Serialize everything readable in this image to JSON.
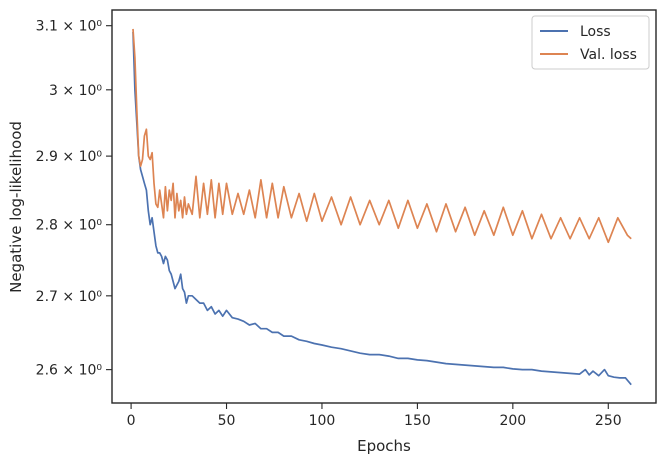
{
  "chart_data": {
    "type": "line",
    "title": "",
    "xlabel": "Epochs",
    "ylabel": "Negative log-likelihood",
    "yscale": "log",
    "xlim": [
      -10,
      275
    ],
    "ylim": [
      2.556,
      3.125
    ],
    "x_ticks": [
      0,
      50,
      100,
      150,
      200,
      250
    ],
    "y_ticks": [
      {
        "value": 2.6,
        "label": "2.6 × 10⁰"
      },
      {
        "value": 2.7,
        "label": "2.7 × 10⁰"
      },
      {
        "value": 2.8,
        "label": "2.8 × 10⁰"
      },
      {
        "value": 2.9,
        "label": "2.9 × 10⁰"
      },
      {
        "value": 3.0,
        "label": "3 × 10⁰"
      },
      {
        "value": 3.1,
        "label": "3.1 × 10⁰"
      }
    ],
    "grid": false,
    "legend": "top-right",
    "series": [
      {
        "name": "Loss",
        "color": "#4c72b0",
        "x": [
          1,
          2,
          3,
          4,
          5,
          6,
          7,
          8,
          9,
          10,
          11,
          12,
          13,
          14,
          15,
          16,
          17,
          18,
          19,
          20,
          21,
          22,
          23,
          24,
          25,
          26,
          27,
          28,
          29,
          30,
          32,
          34,
          36,
          38,
          40,
          42,
          44,
          46,
          48,
          50,
          53,
          56,
          59,
          62,
          65,
          68,
          71,
          74,
          77,
          80,
          84,
          88,
          92,
          96,
          100,
          105,
          110,
          115,
          120,
          125,
          130,
          135,
          140,
          145,
          150,
          155,
          160,
          165,
          170,
          175,
          180,
          185,
          190,
          195,
          200,
          205,
          210,
          215,
          220,
          225,
          230,
          235,
          238,
          240,
          242,
          245,
          248,
          250,
          253,
          256,
          259,
          262
        ],
        "y": [
          3.09,
          3.0,
          2.95,
          2.9,
          2.88,
          2.87,
          2.86,
          2.85,
          2.82,
          2.8,
          2.81,
          2.79,
          2.77,
          2.76,
          2.76,
          2.755,
          2.745,
          2.755,
          2.75,
          2.735,
          2.73,
          2.72,
          2.71,
          2.715,
          2.72,
          2.73,
          2.71,
          2.705,
          2.69,
          2.7,
          2.7,
          2.695,
          2.69,
          2.69,
          2.68,
          2.685,
          2.675,
          2.68,
          2.672,
          2.68,
          2.67,
          2.668,
          2.665,
          2.66,
          2.662,
          2.655,
          2.655,
          2.65,
          2.65,
          2.645,
          2.645,
          2.64,
          2.638,
          2.635,
          2.633,
          2.63,
          2.628,
          2.625,
          2.622,
          2.62,
          2.62,
          2.618,
          2.615,
          2.615,
          2.613,
          2.612,
          2.61,
          2.608,
          2.607,
          2.606,
          2.605,
          2.604,
          2.603,
          2.603,
          2.601,
          2.6,
          2.6,
          2.598,
          2.597,
          2.596,
          2.595,
          2.594,
          2.6,
          2.593,
          2.598,
          2.592,
          2.6,
          2.592,
          2.59,
          2.589,
          2.589,
          2.58
        ]
      },
      {
        "name": "Val. loss",
        "color": "#dd8452",
        "x": [
          1,
          2,
          3,
          4,
          5,
          6,
          7,
          8,
          9,
          10,
          11,
          12,
          13,
          14,
          15,
          16,
          17,
          18,
          19,
          20,
          21,
          22,
          23,
          24,
          25,
          26,
          27,
          28,
          29,
          30,
          32,
          34,
          36,
          38,
          40,
          42,
          44,
          46,
          48,
          50,
          53,
          56,
          59,
          62,
          65,
          68,
          71,
          74,
          77,
          80,
          84,
          88,
          92,
          96,
          100,
          105,
          110,
          115,
          120,
          125,
          130,
          135,
          140,
          145,
          150,
          155,
          160,
          165,
          170,
          175,
          180,
          185,
          190,
          195,
          200,
          205,
          210,
          215,
          220,
          225,
          230,
          235,
          240,
          245,
          250,
          255,
          260,
          262
        ],
        "y": [
          3.095,
          3.05,
          2.97,
          2.9,
          2.885,
          2.895,
          2.93,
          2.94,
          2.9,
          2.895,
          2.905,
          2.86,
          2.83,
          2.825,
          2.85,
          2.83,
          2.81,
          2.855,
          2.82,
          2.85,
          2.835,
          2.86,
          2.81,
          2.845,
          2.82,
          2.835,
          2.81,
          2.84,
          2.815,
          2.83,
          2.815,
          2.87,
          2.81,
          2.86,
          2.815,
          2.865,
          2.81,
          2.86,
          2.815,
          2.86,
          2.815,
          2.845,
          2.815,
          2.85,
          2.81,
          2.865,
          2.81,
          2.86,
          2.81,
          2.855,
          2.81,
          2.845,
          2.805,
          2.845,
          2.805,
          2.84,
          2.8,
          2.84,
          2.8,
          2.835,
          2.8,
          2.835,
          2.795,
          2.835,
          2.795,
          2.83,
          2.79,
          2.83,
          2.79,
          2.825,
          2.785,
          2.82,
          2.785,
          2.825,
          2.785,
          2.82,
          2.78,
          2.815,
          2.78,
          2.81,
          2.78,
          2.81,
          2.78,
          2.81,
          2.775,
          2.81,
          2.785,
          2.78
        ]
      }
    ]
  }
}
